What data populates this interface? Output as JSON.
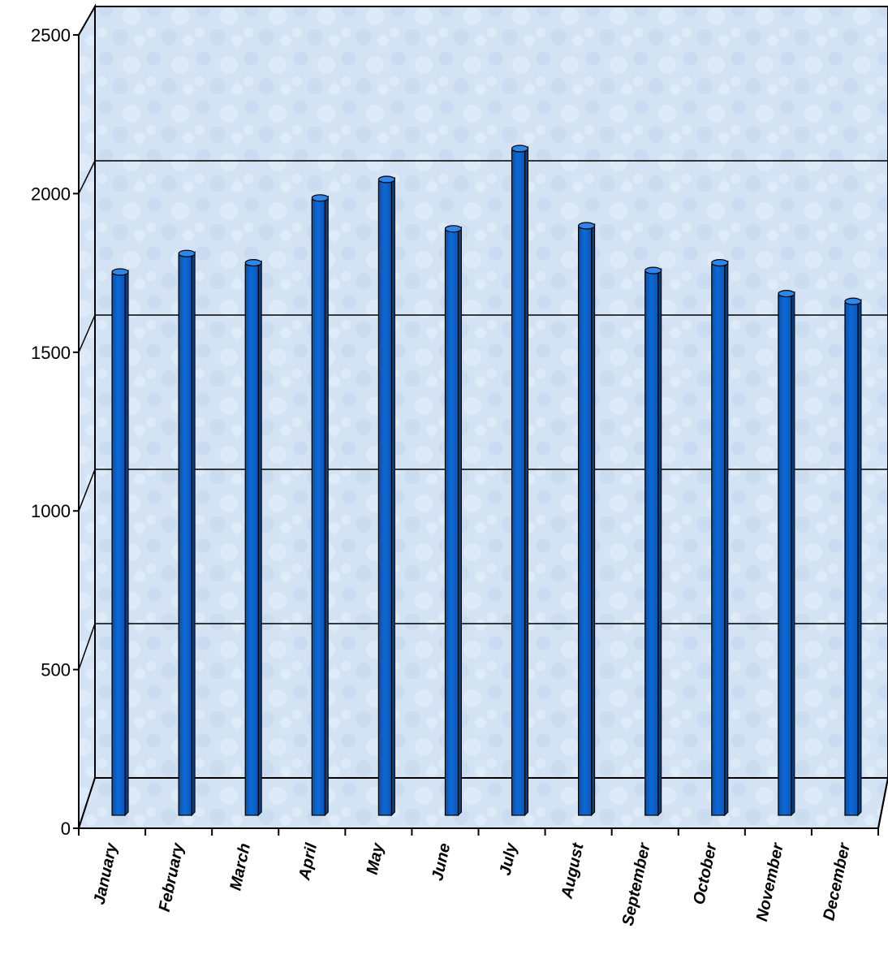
{
  "chart_data": {
    "type": "bar",
    "categories": [
      "January",
      "February",
      "March",
      "April",
      "May",
      "June",
      "July",
      "August",
      "September",
      "October",
      "November",
      "December"
    ],
    "values": [
      1650,
      1710,
      1680,
      1890,
      1950,
      1790,
      2050,
      1800,
      1655,
      1680,
      1580,
      1555
    ],
    "ylim": [
      0,
      2500
    ],
    "yticks": [
      0,
      500,
      1000,
      1500,
      2000,
      2500
    ],
    "title": "",
    "xlabel": "",
    "ylabel": "",
    "grid": true,
    "legend": "none",
    "bar_color": "#0a5fc8",
    "wall_color": "#cfe0f2"
  }
}
